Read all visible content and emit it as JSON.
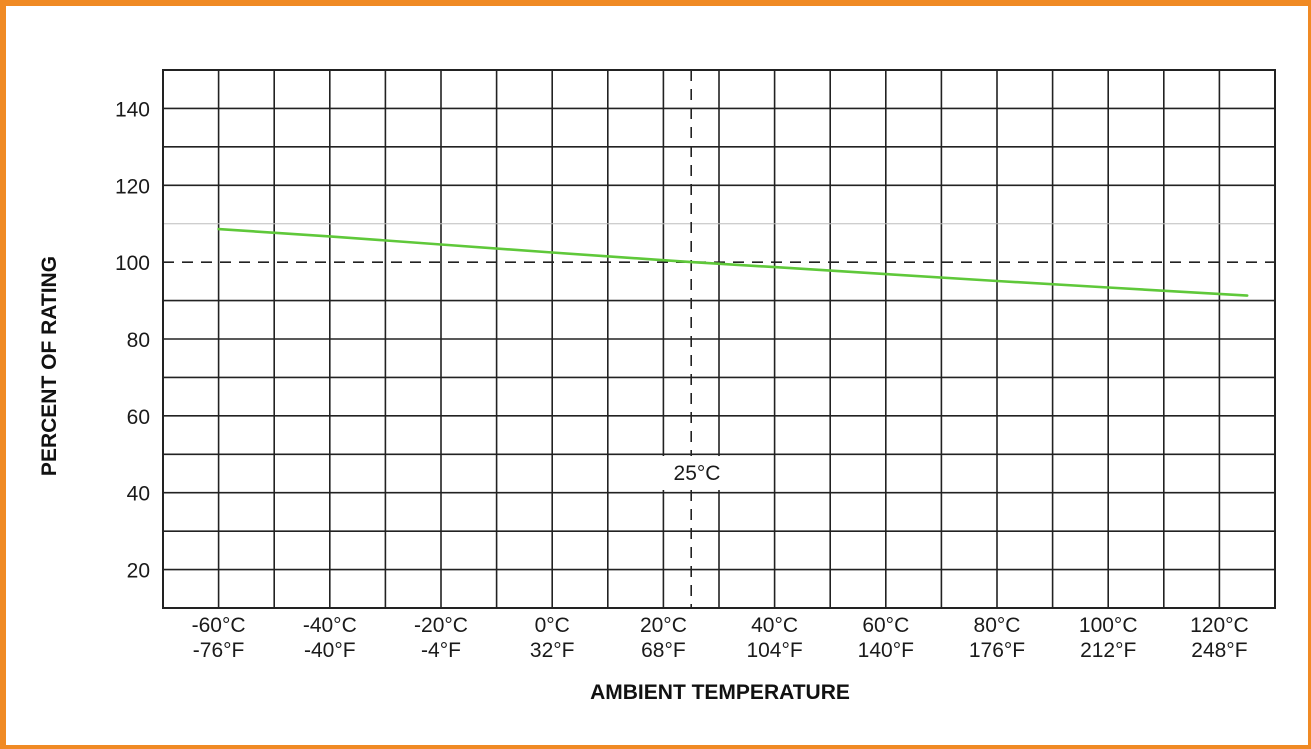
{
  "chart_data": {
    "type": "line",
    "title": "",
    "xlabel": "AMBIENT TEMPERATURE",
    "ylabel": "PERCENT OF RATING",
    "x_unit": "°C",
    "xlim": [
      -70,
      130
    ],
    "ylim": [
      10,
      150
    ],
    "yticks": [
      20,
      40,
      60,
      80,
      100,
      120,
      140
    ],
    "x_tick_labels": [
      {
        "c": "-60°C",
        "f": "-76°F",
        "value": -60
      },
      {
        "c": "-40°C",
        "f": "-40°F",
        "value": -40
      },
      {
        "c": "-20°C",
        "f": "-4°F",
        "value": -20
      },
      {
        "c": "0°C",
        "f": "32°F",
        "value": 0
      },
      {
        "c": "20°C",
        "f": "68°F",
        "value": 20
      },
      {
        "c": "40°C",
        "f": "104°F",
        "value": 40
      },
      {
        "c": "60°C",
        "f": "140°F",
        "value": 60
      },
      {
        "c": "80°C",
        "f": "176°F",
        "value": 80
      },
      {
        "c": "100°C",
        "f": "212°F",
        "value": 100
      },
      {
        "c": "120°C",
        "f": "248°F",
        "value": 120
      }
    ],
    "grid": true,
    "grid_step_x": 10,
    "grid_step_y": 10,
    "reference_lines": {
      "vertical": {
        "x": 25,
        "label": "25°C",
        "style": "dashed"
      },
      "horizontal": {
        "y": 100,
        "style": "dashed"
      }
    },
    "series": [
      {
        "color": "#5fc83a",
        "x": [
          -60,
          -40,
          -20,
          0,
          20,
          25,
          40,
          60,
          80,
          100,
          125
        ],
        "y": [
          108.6,
          106.7,
          104.6,
          102.5,
          100.5,
          100.0,
          98.7,
          96.9,
          95.1,
          93.4,
          91.3
        ]
      }
    ]
  },
  "colors": {
    "frame": "#f08a24",
    "grid": "#222222",
    "line": "#5fc83a"
  }
}
